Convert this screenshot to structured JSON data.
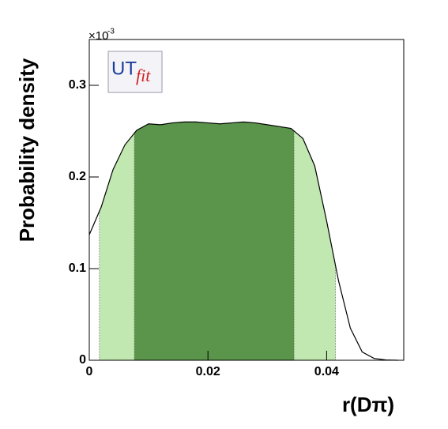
{
  "chart_data": {
    "type": "area",
    "x": [
      0,
      0.002,
      0.004,
      0.006,
      0.008,
      0.01,
      0.012,
      0.014,
      0.016,
      0.018,
      0.02,
      0.022,
      0.024,
      0.026,
      0.028,
      0.03,
      0.032,
      0.034,
      0.036,
      0.038,
      0.04,
      0.042,
      0.044,
      0.046,
      0.048,
      0.05,
      0.052
    ],
    "values": [
      0.137,
      0.167,
      0.208,
      0.235,
      0.251,
      0.258,
      0.257,
      0.259,
      0.26,
      0.26,
      0.259,
      0.258,
      0.259,
      0.26,
      0.259,
      0.257,
      0.255,
      0.253,
      0.242,
      0.212,
      0.152,
      0.087,
      0.035,
      0.009,
      0.002,
      0.0003,
      0
    ],
    "color": "#000000",
    "bands": [
      {
        "range": [
          0.0017,
          0.0415
        ],
        "color": "#c0e8b0"
      },
      {
        "range": [
          0.0076,
          0.0345
        ],
        "color": "#5b954b"
      }
    ],
    "xlim": [
      0,
      0.053
    ],
    "xticks": [
      0,
      0.02,
      0.04
    ],
    "ylim": [
      0,
      0.35
    ],
    "yticks": [
      0,
      0.1,
      0.2,
      0.3
    ],
    "y_multiplier": "×10",
    "y_multiplier_exponent": "-3",
    "xlabel": "r(Dπ)",
    "ylabel": "Probability density",
    "logo": [
      "UT",
      "fit"
    ]
  }
}
